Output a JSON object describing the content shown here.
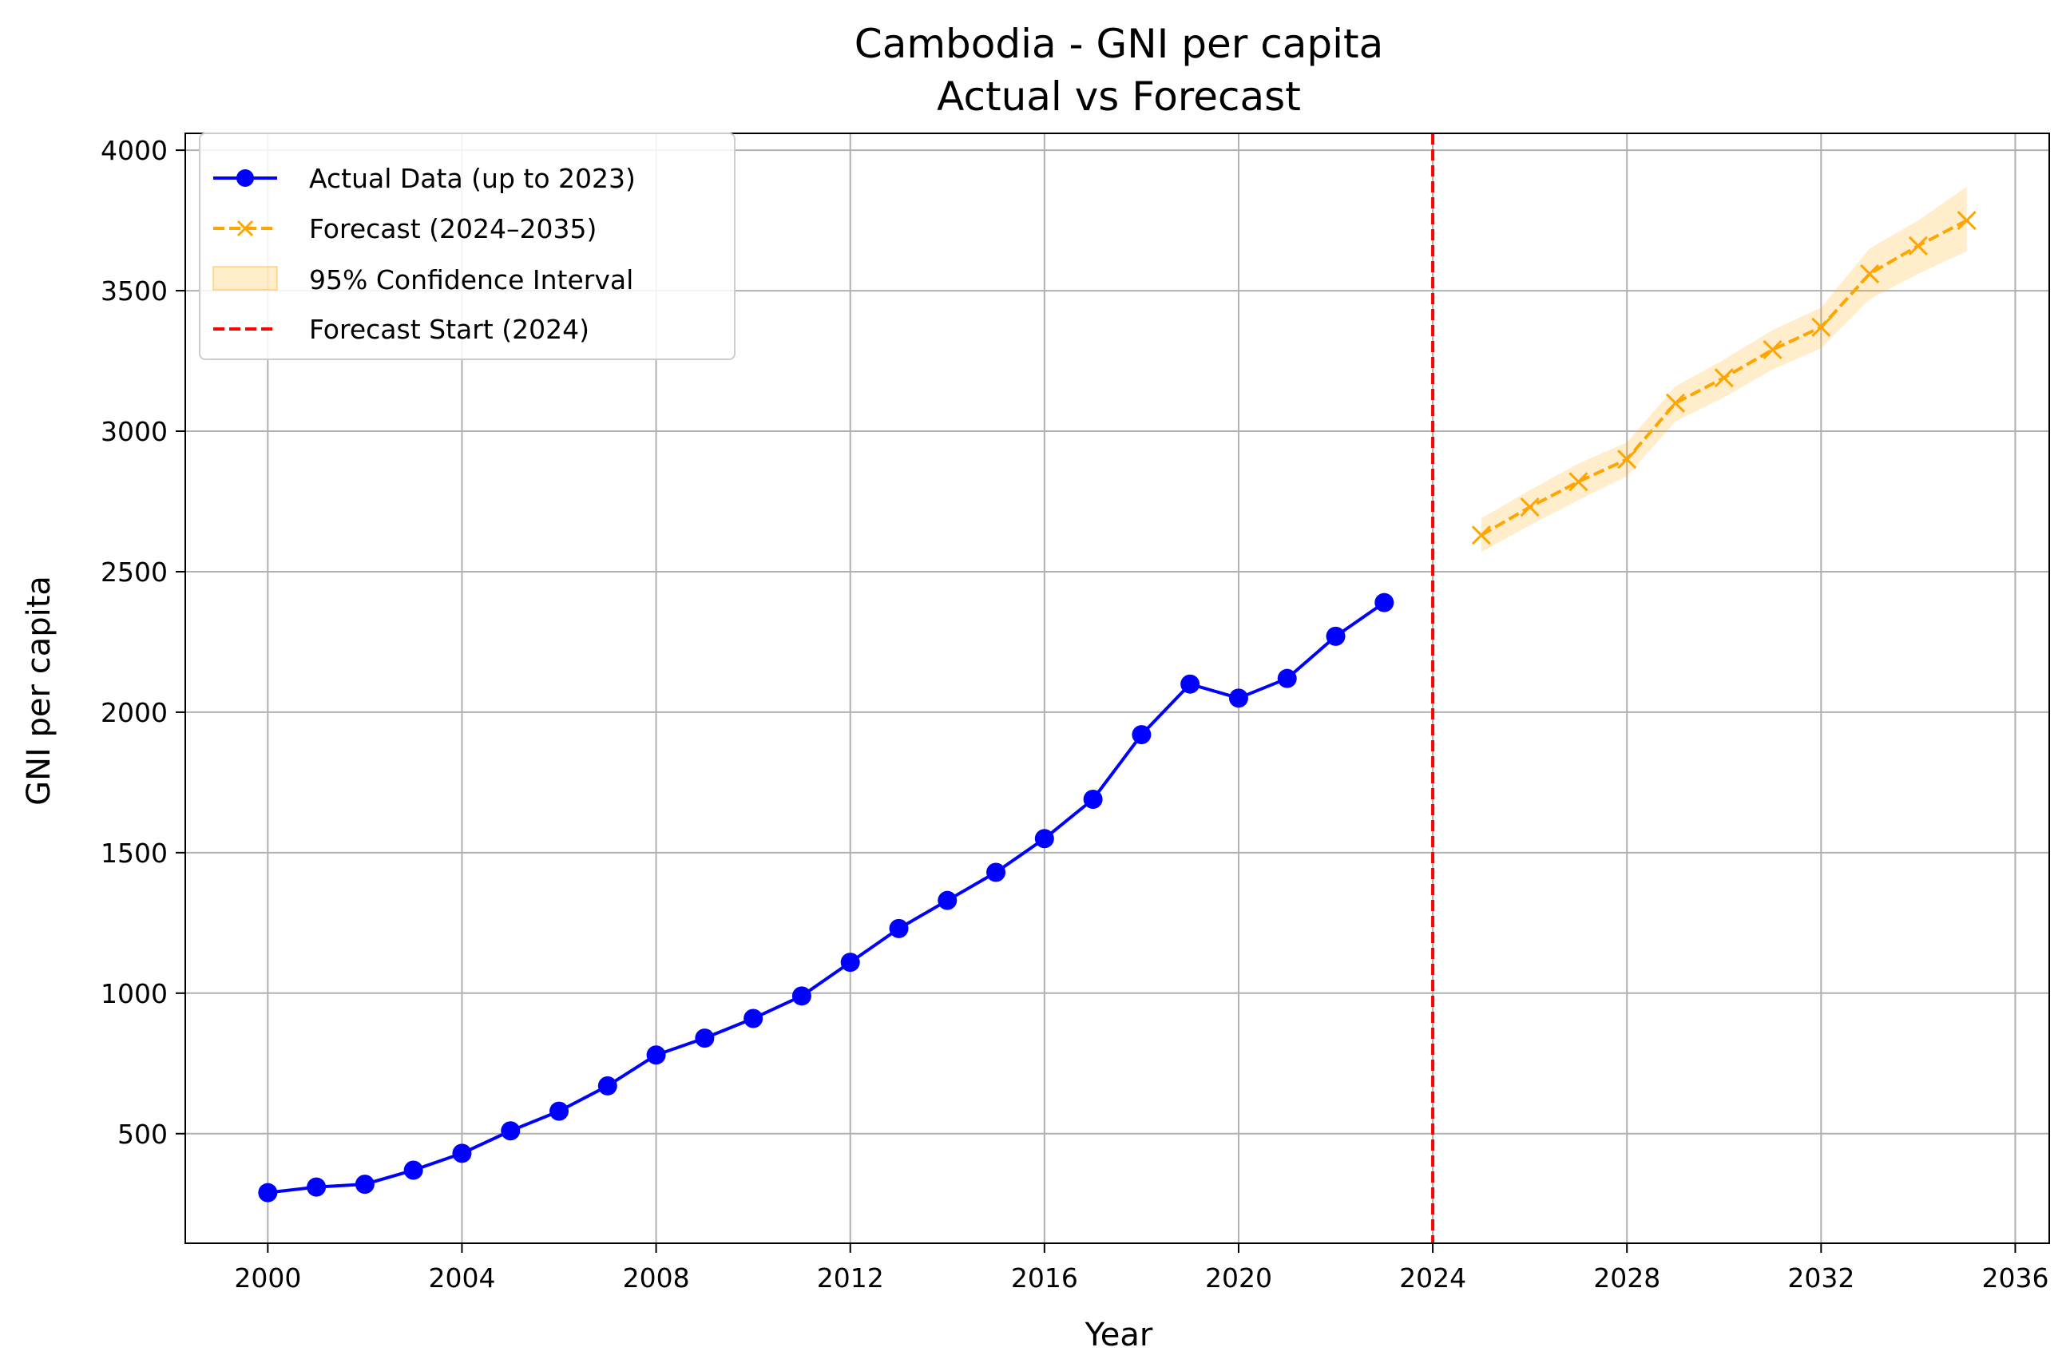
{
  "chart_data": {
    "type": "line",
    "title": "Cambodia - GNI per capita",
    "subtitle": "Actual vs Forecast",
    "xlabel": "Year",
    "ylabel": "GNI per capita",
    "xlim": [
      1998.3,
      2036.7
    ],
    "ylim": [
      110,
      4060
    ],
    "x_ticks": [
      2000,
      2004,
      2008,
      2012,
      2016,
      2020,
      2024,
      2028,
      2032,
      2036
    ],
    "y_ticks": [
      500,
      1000,
      1500,
      2000,
      2500,
      3000,
      3500,
      4000
    ],
    "grid": true,
    "legend_position": "top-left",
    "series": [
      {
        "name": "Actual Data (up to 2023)",
        "style": "solid-line-circle-markers",
        "color": "#0000ff",
        "x": [
          2000,
          2001,
          2002,
          2003,
          2004,
          2005,
          2006,
          2007,
          2008,
          2009,
          2010,
          2011,
          2012,
          2013,
          2014,
          2015,
          2016,
          2017,
          2018,
          2019,
          2020,
          2021,
          2022,
          2023
        ],
        "y": [
          290,
          310,
          320,
          370,
          430,
          510,
          580,
          670,
          780,
          840,
          910,
          990,
          1110,
          1230,
          1330,
          1430,
          1550,
          1690,
          1920,
          2100,
          2050,
          2120,
          2270,
          2390
        ]
      },
      {
        "name": "Forecast (2024–2035)",
        "style": "dashed-line-x-markers",
        "color": "#ffa500",
        "x": [
          2025,
          2026,
          2027,
          2028,
          2029,
          2030,
          2031,
          2032,
          2033,
          2034,
          2035
        ],
        "y": [
          2630,
          2730,
          2820,
          2900,
          3100,
          3190,
          3290,
          3370,
          3560,
          3660,
          3750
        ],
        "ci_lower": [
          2570,
          2665,
          2755,
          2840,
          3035,
          3120,
          3220,
          3295,
          3470,
          3560,
          3640
        ],
        "ci_upper": [
          2690,
          2790,
          2885,
          2960,
          3160,
          3255,
          3360,
          3440,
          3650,
          3750,
          3870
        ]
      }
    ],
    "confidence_band": {
      "name": "95% Confidence Interval",
      "color": "#ffa500",
      "opacity": 0.2
    },
    "reference_line": {
      "name": "Forecast Start (2024)",
      "x": 2024,
      "color": "#ff0000",
      "style": "dashed"
    }
  }
}
